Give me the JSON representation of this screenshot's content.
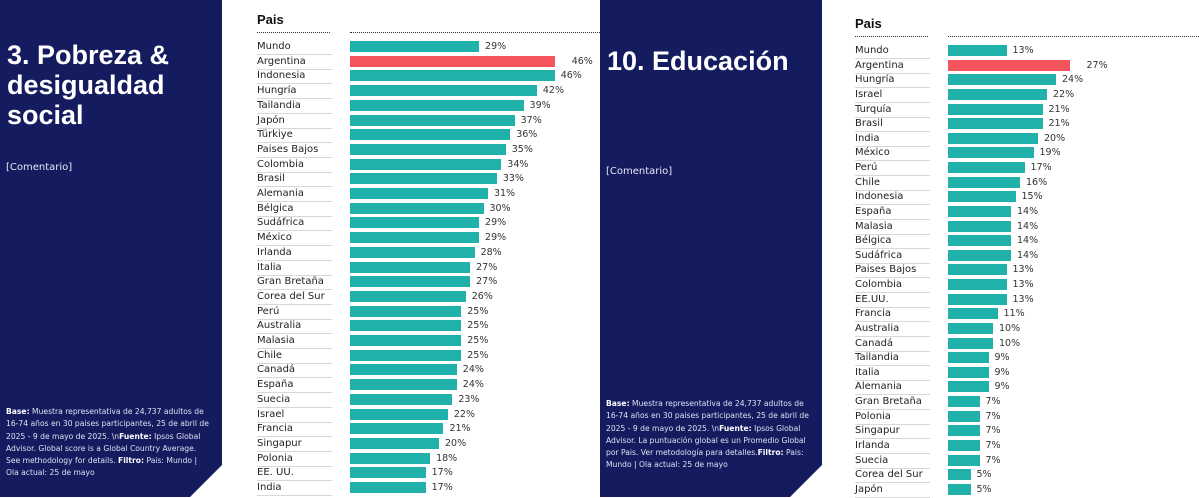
{
  "colors": {
    "panel": "#141b5e",
    "bar": "#20b2aa",
    "highlight": "#f4555c"
  },
  "left": {
    "title": "3. Pobreza & desigualdad social",
    "comment": "[Comentario]",
    "footnote": {
      "base_label": "Base:",
      "base": " Muestra representativa de 24,737 adultos de 16-74 años en 30 paises participantes, 25 de abril de 2025 - 9 de mayo de 2025. \\n",
      "source_label": "Fuente:",
      "source": " Ipsos Global Advisor. Global score is a Global Country Average. See methodology for details. ",
      "filter_label": "Filtro:",
      "filter": " Pais: Mundo | Ola actual: 25 de mayo"
    }
  },
  "right": {
    "title": "10. Educación",
    "comment": "[Comentario]",
    "footnote": {
      "base_label": "Base:",
      "base": " Muestra representativa de 24,737 adultos de 16-74 años en 30 paises participantes, 25 de abril de 2025 - 9 de mayo de 2025. \\n",
      "source_label": "Fuente:",
      "source": " Ipsos Global Advisor. La puntuación global es un Promedio Global por Pais. Ver metodología para detalles.",
      "filter_label": "Filtro:",
      "filter": " Pais: Mundo | Ola actual: 25 de mayo"
    }
  },
  "chart_data": [
    {
      "type": "bar",
      "orientation": "horizontal",
      "header": "Pais",
      "highlight": "Argentina",
      "unit": "%",
      "categories": [
        "Mundo",
        "Argentina",
        "Indonesia",
        "Hungría",
        "Tailandia",
        "Japón",
        "Türkiye",
        "Paises Bajos",
        "Colombia",
        "Brasil",
        "Alemania",
        "Bélgica",
        "Sudáfrica",
        "México",
        "Irlanda",
        "Italia",
        "Gran Bretaña",
        "Corea del Sur",
        "Perú",
        "Australia",
        "Malasia",
        "Chile",
        "Canadá",
        "España",
        "Suecia",
        "Israel",
        "Francia",
        "Singapur",
        "Polonia",
        "EE. UU.",
        "India"
      ],
      "values": [
        29,
        46,
        46,
        42,
        39,
        37,
        36,
        35,
        34,
        33,
        31,
        30,
        29,
        29,
        28,
        27,
        27,
        26,
        25,
        25,
        25,
        25,
        24,
        24,
        23,
        22,
        21,
        20,
        18,
        17,
        17
      ]
    },
    {
      "type": "bar",
      "orientation": "horizontal",
      "header": "Pais",
      "highlight": "Argentina",
      "unit": "%",
      "categories": [
        "Mundo",
        "Argentina",
        "Hungría",
        "Israel",
        "Turquía",
        "Brasil",
        "India",
        "México",
        "Perú",
        "Chile",
        "Indonesia",
        "España",
        "Malasia",
        "Bélgica",
        "Sudáfrica",
        "Paises Bajos",
        "Colombia",
        "EE.UU.",
        "Francia",
        "Australia",
        "Canadá",
        "Tailandia",
        "Italia",
        "Alemania",
        "Gran Bretaña",
        "Polonia",
        "Singapur",
        "Irlanda",
        "Suecia",
        "Corea del Sur",
        "Japón"
      ],
      "values": [
        13,
        27,
        24,
        22,
        21,
        21,
        20,
        19,
        17,
        16,
        15,
        14,
        14,
        14,
        14,
        13,
        13,
        13,
        11,
        10,
        10,
        9,
        9,
        9,
        7,
        7,
        7,
        7,
        7,
        5,
        5
      ]
    }
  ]
}
